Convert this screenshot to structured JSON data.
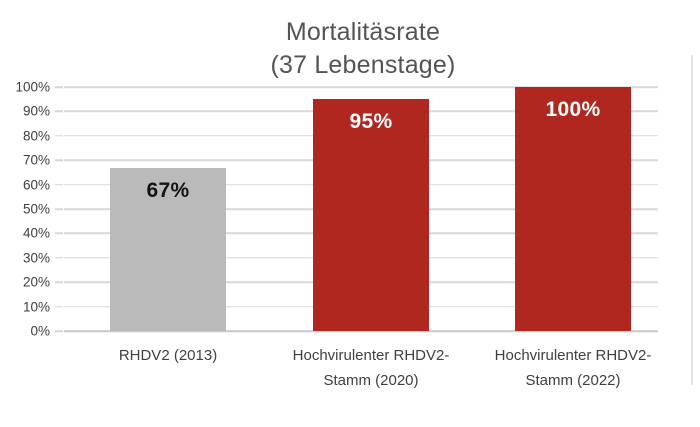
{
  "title": {
    "line1": "Mortalitäsrate",
    "line2": "(37 Lebenstage)"
  },
  "chart_data": {
    "type": "bar",
    "title": "Mortalitäsrate (37 Lebenstage)",
    "categories": [
      "RHDV2 (2013)",
      "Hochvirulenter RHDV2-Stamm (2020)",
      "Hochvirulenter RHDV2-Stamm (2022)"
    ],
    "category_display_lines": [
      [
        "RHDV2 (2013)"
      ],
      [
        "Hochvirulenter RHDV2-",
        "Stamm (2020)"
      ],
      [
        "Hochvirulenter RHDV2-",
        "Stamm (2022)"
      ]
    ],
    "values": [
      67,
      95,
      100
    ],
    "value_labels": [
      "67%",
      "95%",
      "100%"
    ],
    "bar_colors": [
      "#bababa",
      "#b0271f",
      "#b0271f"
    ],
    "value_label_colors": [
      "#141414",
      "#ffffff",
      "#ffffff"
    ],
    "xlabel": "",
    "ylabel": "",
    "ylim": [
      0,
      100
    ],
    "yticks": [
      0,
      10,
      20,
      30,
      40,
      50,
      60,
      70,
      80,
      90,
      100
    ],
    "ytick_labels": [
      "0%",
      "10%",
      "20%",
      "30%",
      "40%",
      "50%",
      "60%",
      "70%",
      "80%",
      "90%",
      "100%"
    ],
    "grid": true,
    "legend": false
  },
  "style": {
    "background": "#ffffff",
    "gridline_color": "#d9d9d9",
    "axis_line_color": "#c9c9c9",
    "tick_color": "#d6d6d6",
    "title_color": "#545454",
    "axis_text_color": "#404040",
    "frame_line_color": "#e4e4e4"
  }
}
